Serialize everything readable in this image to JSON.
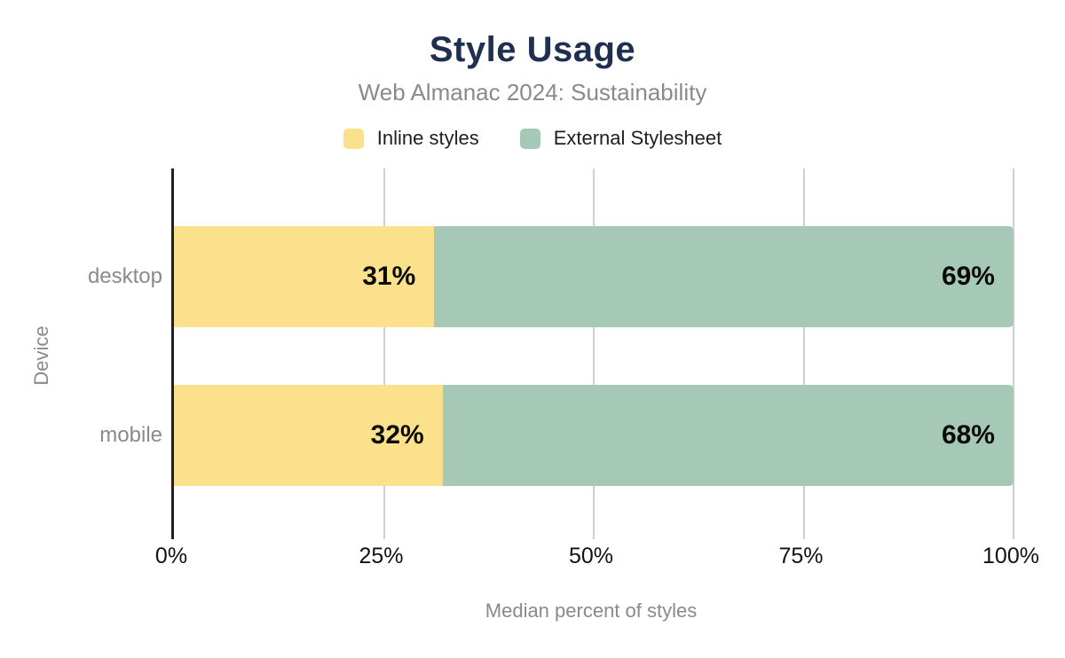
{
  "header": {
    "title": "Style Usage",
    "subtitle": "Web Almanac 2024: Sustainability"
  },
  "chart_data": {
    "type": "bar",
    "orientation": "horizontal",
    "stacked": true,
    "title": "Style Usage",
    "subtitle": "Web Almanac 2024: Sustainability",
    "categories": [
      "desktop",
      "mobile"
    ],
    "series": [
      {
        "name": "Inline styles",
        "color": "#fbe18c",
        "values": [
          31,
          32
        ]
      },
      {
        "name": "External Stylesheet",
        "color": "#a6c8b6",
        "values": [
          69,
          68
        ]
      }
    ],
    "value_labels": [
      [
        "31%",
        "69%"
      ],
      [
        "32%",
        "68%"
      ]
    ],
    "xlabel": "Median percent of styles",
    "ylabel": "Device",
    "xlim": [
      0,
      100
    ],
    "x_ticks": [
      {
        "value": 0,
        "label": "0%"
      },
      {
        "value": 25,
        "label": "25%"
      },
      {
        "value": 50,
        "label": "50%"
      },
      {
        "value": 75,
        "label": "75%"
      },
      {
        "value": 100,
        "label": "100%"
      }
    ],
    "grid": "vertical",
    "legend_position": "top"
  },
  "colors": {
    "title": "#1f2f4f",
    "muted_text": "#8a8a8a",
    "tick_text": "#111111",
    "gridline": "#d0d0d0",
    "axis_line": "#212121",
    "background": "#ffffff"
  }
}
